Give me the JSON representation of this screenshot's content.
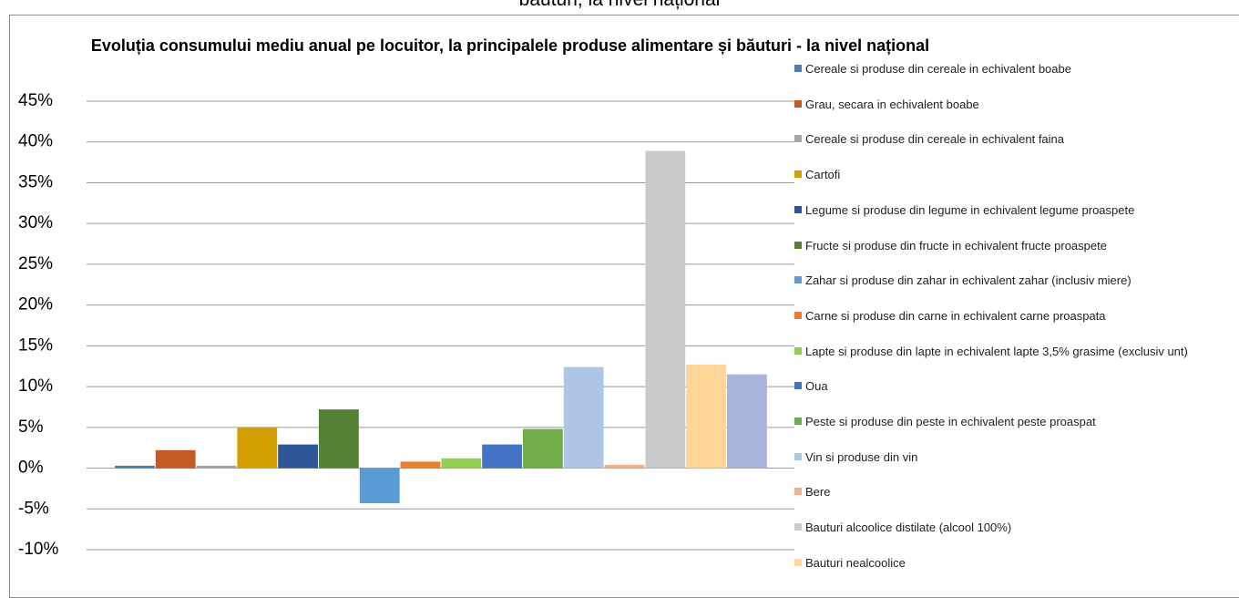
{
  "page_caption": "băuturi, la nivel național",
  "chart_data": {
    "type": "bar",
    "title": "Evoluția consumului mediu anual pe locuitor, la principalele produse alimentare și băuturi - la nivel național",
    "ylim": [
      -10,
      45
    ],
    "yticks": [
      {
        "value": -10,
        "label": "-10%"
      },
      {
        "value": -5,
        "label": "-5%"
      },
      {
        "value": 0,
        "label": "0%"
      },
      {
        "value": 5,
        "label": "5%"
      },
      {
        "value": 10,
        "label": "10%"
      },
      {
        "value": 15,
        "label": "15%"
      },
      {
        "value": 20,
        "label": "20%"
      },
      {
        "value": 25,
        "label": "25%"
      },
      {
        "value": 30,
        "label": "30%"
      },
      {
        "value": 35,
        "label": "35%"
      },
      {
        "value": 40,
        "label": "40%"
      },
      {
        "value": 45,
        "label": "45%"
      }
    ],
    "grid": true,
    "legend": "right",
    "series": [
      {
        "name": "Cereale si produse din cereale in echivalent boabe",
        "color": "#4a7ebb",
        "values": [
          0.3
        ]
      },
      {
        "name": "Grau, secara in echivalent boabe",
        "color": "#c55a22",
        "values": [
          2.2
        ]
      },
      {
        "name": "Cereale si produse din cereale in echivalent faina",
        "color": "#a5a5a5",
        "values": [
          0.3
        ]
      },
      {
        "name": "Cartofi",
        "color": "#d4a000",
        "values": [
          5.0
        ]
      },
      {
        "name": "Legume si produse din legume in echivalent legume proaspete",
        "color": "#2e5597",
        "values": [
          2.9
        ]
      },
      {
        "name": "Fructe si produse din fructe in echivalent fructe proaspete",
        "color": "#548235",
        "values": [
          7.2
        ]
      },
      {
        "name": "Zahar si produse din zahar in echivalent zahar (inclusiv miere)",
        "color": "#5b9bd5",
        "values": [
          -4.3
        ]
      },
      {
        "name": "Carne si produse din carne in echivalent carne proaspata",
        "color": "#ed7d31",
        "values": [
          0.8
        ]
      },
      {
        "name": "Lapte si produse din lapte in echivalent lapte 3,5% grasime (exclusiv unt)",
        "color": "#92d050",
        "values": [
          1.2
        ]
      },
      {
        "name": "Oua",
        "color": "#4472c4",
        "values": [
          2.9
        ]
      },
      {
        "name": "Peste si produse din peste in echivalent peste proaspat",
        "color": "#70ad47",
        "values": [
          4.8
        ]
      },
      {
        "name": "Vin si produse din vin",
        "color": "#adc6e6",
        "values": [
          12.4
        ]
      },
      {
        "name": "Bere",
        "color": "#f4b183",
        "values": [
          0.4
        ]
      },
      {
        "name": "Bauturi alcoolice distilate (alcool 100%)",
        "color": "#c9c9c9",
        "values": [
          38.9
        ]
      },
      {
        "name": "Bauturi nealcoolice",
        "color": "#ffd699",
        "values": [
          12.7
        ]
      },
      {
        "name": null,
        "color": "#a9b4db",
        "values": [
          11.5
        ]
      }
    ]
  }
}
